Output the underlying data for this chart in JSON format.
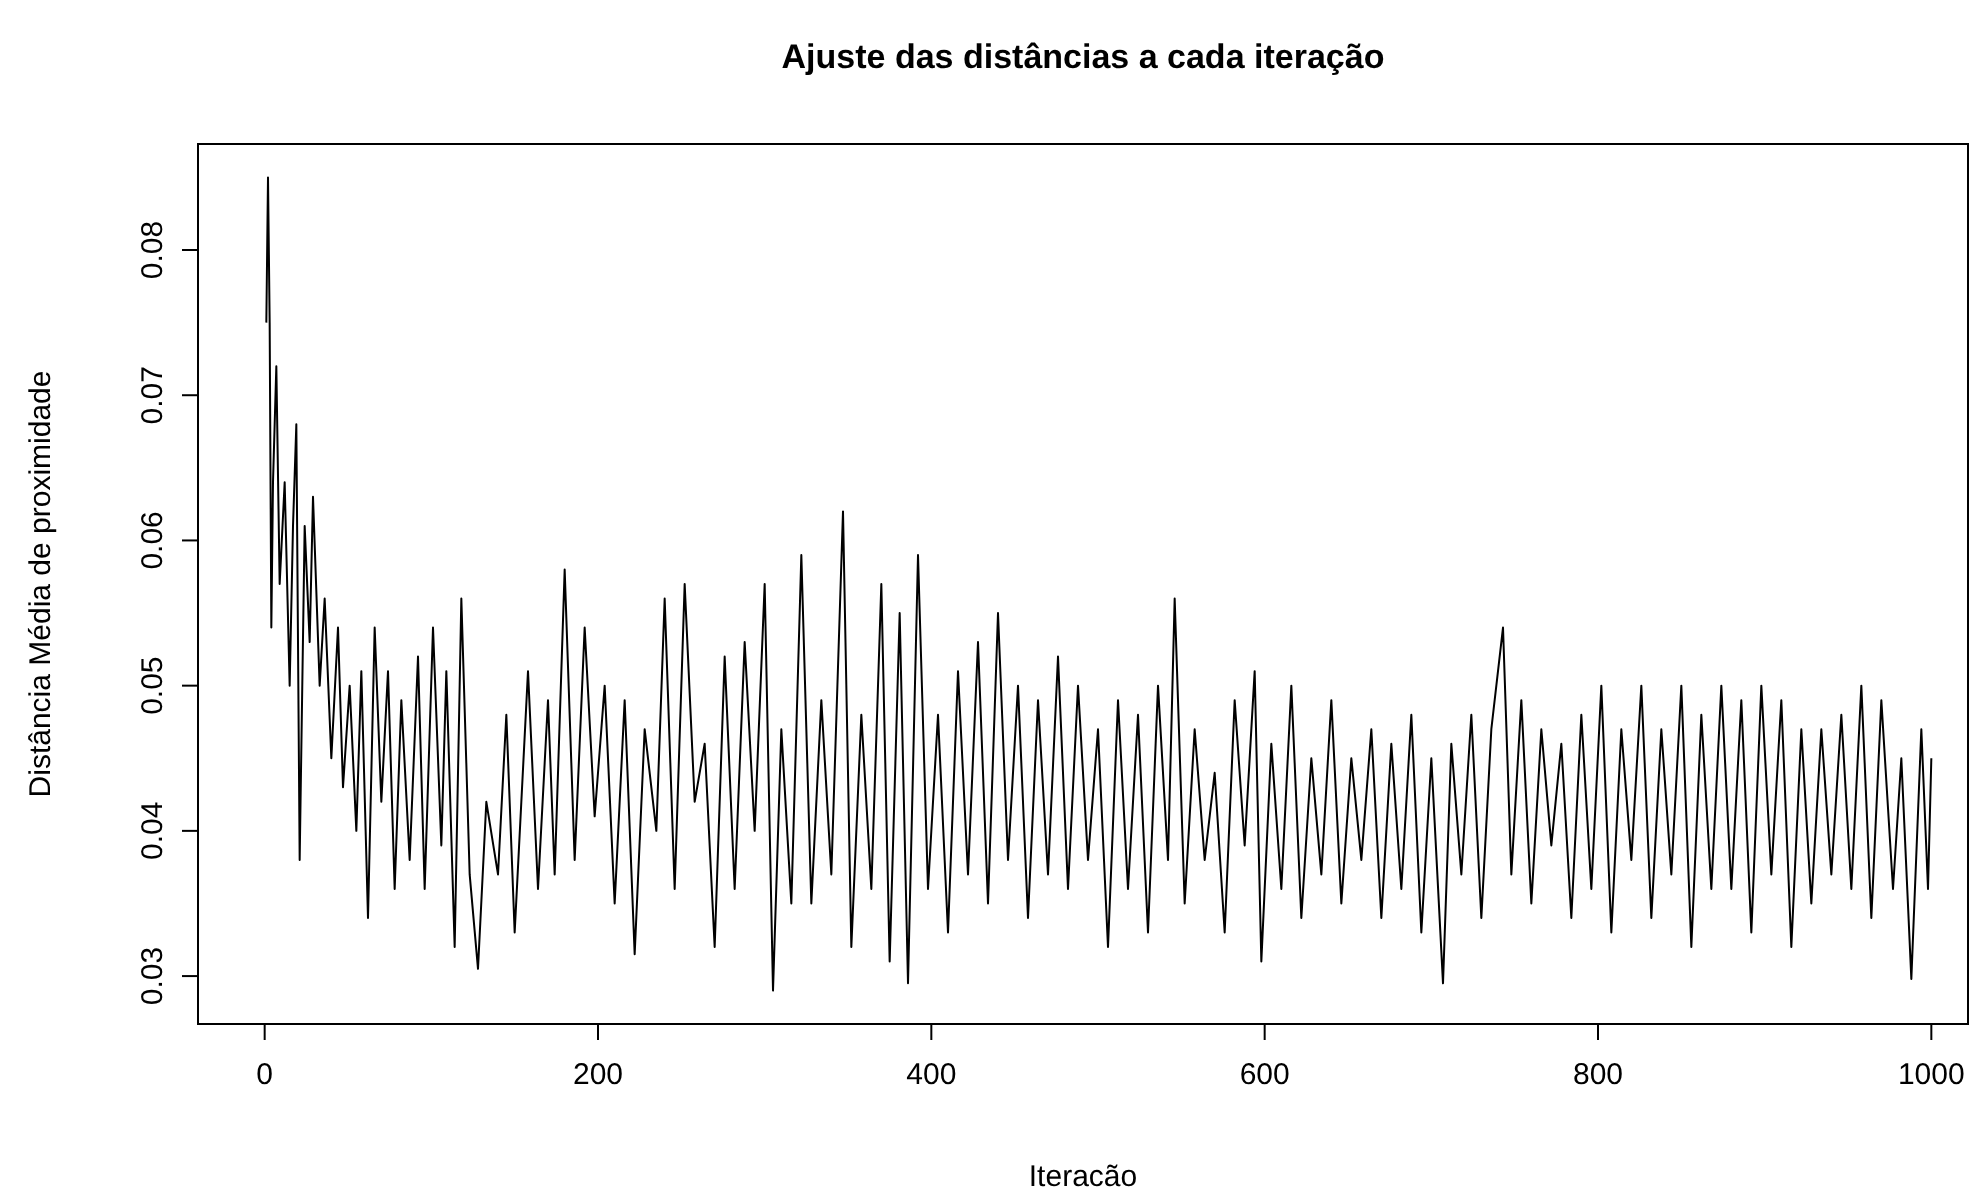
{
  "chart_data": {
    "type": "line",
    "title": "Ajuste das distâncias a cada iteração",
    "xlabel": "Iteracão",
    "ylabel": "Distância Média de proximidade",
    "x": [
      1,
      2,
      3,
      4,
      5,
      7,
      9,
      12,
      15,
      17,
      19,
      21,
      24,
      27,
      29,
      33,
      36,
      40,
      44,
      47,
      51,
      55,
      58,
      62,
      66,
      70,
      74,
      78,
      82,
      87,
      92,
      96,
      101,
      106,
      109,
      114,
      118,
      123,
      128,
      133,
      140,
      145,
      150,
      158,
      164,
      170,
      174,
      180,
      186,
      192,
      198,
      204,
      210,
      216,
      222,
      228,
      235,
      240,
      246,
      252,
      258,
      264,
      270,
      276,
      282,
      288,
      294,
      300,
      305,
      310,
      316,
      322,
      328,
      334,
      340,
      347,
      352,
      358,
      364,
      370,
      375,
      381,
      386,
      392,
      398,
      404,
      410,
      416,
      422,
      428,
      434,
      440,
      446,
      452,
      458,
      464,
      470,
      476,
      482,
      488,
      494,
      500,
      506,
      512,
      518,
      524,
      530,
      536,
      542,
      546,
      552,
      558,
      564,
      570,
      576,
      582,
      588,
      594,
      598,
      604,
      610,
      616,
      622,
      628,
      634,
      640,
      646,
      652,
      658,
      664,
      670,
      676,
      682,
      688,
      694,
      700,
      707,
      712,
      718,
      724,
      730,
      736,
      743,
      748,
      754,
      760,
      766,
      772,
      778,
      784,
      790,
      796,
      802,
      808,
      814,
      820,
      826,
      832,
      838,
      844,
      850,
      856,
      862,
      868,
      874,
      880,
      886,
      892,
      898,
      904,
      910,
      916,
      922,
      928,
      934,
      940,
      946,
      952,
      958,
      964,
      970,
      977,
      982,
      988,
      994,
      998,
      1000
    ],
    "series": [
      {
        "color": "#000000",
        "values": [
          0.075,
          0.085,
          0.075,
          0.054,
          0.064,
          0.072,
          0.057,
          0.064,
          0.05,
          0.061,
          0.068,
          0.038,
          0.061,
          0.053,
          0.063,
          0.05,
          0.056,
          0.045,
          0.054,
          0.043,
          0.05,
          0.04,
          0.051,
          0.034,
          0.054,
          0.042,
          0.051,
          0.036,
          0.049,
          0.038,
          0.052,
          0.036,
          0.054,
          0.039,
          0.051,
          0.032,
          0.056,
          0.037,
          0.0305,
          0.042,
          0.037,
          0.048,
          0.033,
          0.051,
          0.036,
          0.049,
          0.037,
          0.058,
          0.038,
          0.054,
          0.041,
          0.05,
          0.035,
          0.049,
          0.0315,
          0.047,
          0.04,
          0.056,
          0.036,
          0.057,
          0.042,
          0.046,
          0.032,
          0.052,
          0.036,
          0.053,
          0.04,
          0.057,
          0.029,
          0.047,
          0.035,
          0.059,
          0.035,
          0.049,
          0.037,
          0.062,
          0.032,
          0.048,
          0.036,
          0.057,
          0.031,
          0.055,
          0.0295,
          0.059,
          0.036,
          0.048,
          0.033,
          0.051,
          0.037,
          0.053,
          0.035,
          0.055,
          0.038,
          0.05,
          0.034,
          0.049,
          0.037,
          0.052,
          0.036,
          0.05,
          0.038,
          0.047,
          0.032,
          0.049,
          0.036,
          0.048,
          0.033,
          0.05,
          0.038,
          0.056,
          0.035,
          0.047,
          0.038,
          0.044,
          0.033,
          0.049,
          0.039,
          0.051,
          0.031,
          0.046,
          0.036,
          0.05,
          0.034,
          0.045,
          0.037,
          0.049,
          0.035,
          0.045,
          0.038,
          0.047,
          0.034,
          0.046,
          0.036,
          0.048,
          0.033,
          0.045,
          0.0295,
          0.046,
          0.037,
          0.048,
          0.034,
          0.047,
          0.054,
          0.037,
          0.049,
          0.035,
          0.047,
          0.039,
          0.046,
          0.034,
          0.048,
          0.036,
          0.05,
          0.033,
          0.047,
          0.038,
          0.05,
          0.034,
          0.047,
          0.037,
          0.05,
          0.032,
          0.048,
          0.036,
          0.05,
          0.036,
          0.049,
          0.033,
          0.05,
          0.037,
          0.049,
          0.032,
          0.047,
          0.035,
          0.047,
          0.037,
          0.048,
          0.036,
          0.05,
          0.034,
          0.049,
          0.036,
          0.045,
          0.0298,
          0.047,
          0.036,
          0.045
        ]
      }
    ],
    "xlim": [
      -40,
      1022
    ],
    "ylim": [
      0.0267,
      0.0873
    ],
    "xticks": [
      0,
      200,
      400,
      600,
      800,
      1000
    ],
    "yticks": [
      {
        "value": 0.03,
        "label": "0.03"
      },
      {
        "value": 0.04,
        "label": "0.04"
      },
      {
        "value": 0.05,
        "label": "0.05"
      },
      {
        "value": 0.06,
        "label": "0.06"
      },
      {
        "value": 0.07,
        "label": "0.07"
      },
      {
        "value": 0.08,
        "label": "0.08"
      }
    ],
    "grid": false,
    "marker": "none",
    "line_style": "solid"
  }
}
